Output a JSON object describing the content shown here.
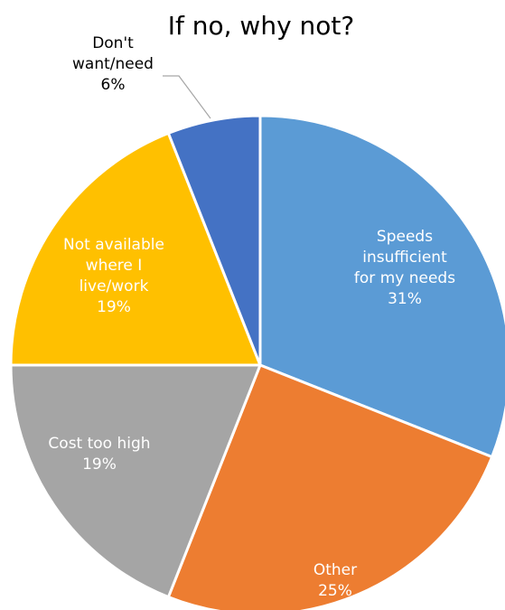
{
  "chart_data": {
    "type": "pie",
    "title": "If no, why not?",
    "slices": [
      {
        "label_lines": [
          "Speeds",
          "insufficient",
          "for my needs"
        ],
        "percent_label": "31%",
        "value": 31,
        "color": "#5B9BD5",
        "label_position": "inside"
      },
      {
        "label_lines": [
          "Other"
        ],
        "percent_label": "25%",
        "value": 25,
        "color": "#ED7D31",
        "label_position": "inside"
      },
      {
        "label_lines": [
          "Cost too high"
        ],
        "percent_label": "19%",
        "value": 19,
        "color": "#A5A5A5",
        "label_position": "inside"
      },
      {
        "label_lines": [
          "Not available",
          "where I",
          "live/work"
        ],
        "percent_label": "19%",
        "value": 19,
        "color": "#FFC000",
        "label_position": "inside"
      },
      {
        "label_lines": [
          "Don't",
          "want/need"
        ],
        "percent_label": "6%",
        "value": 6,
        "color": "#4472C4",
        "label_position": "outside-leader"
      }
    ],
    "start": "12 o'clock",
    "direction": "clockwise",
    "slice_border_color": "#ffffff",
    "legend": "none"
  }
}
